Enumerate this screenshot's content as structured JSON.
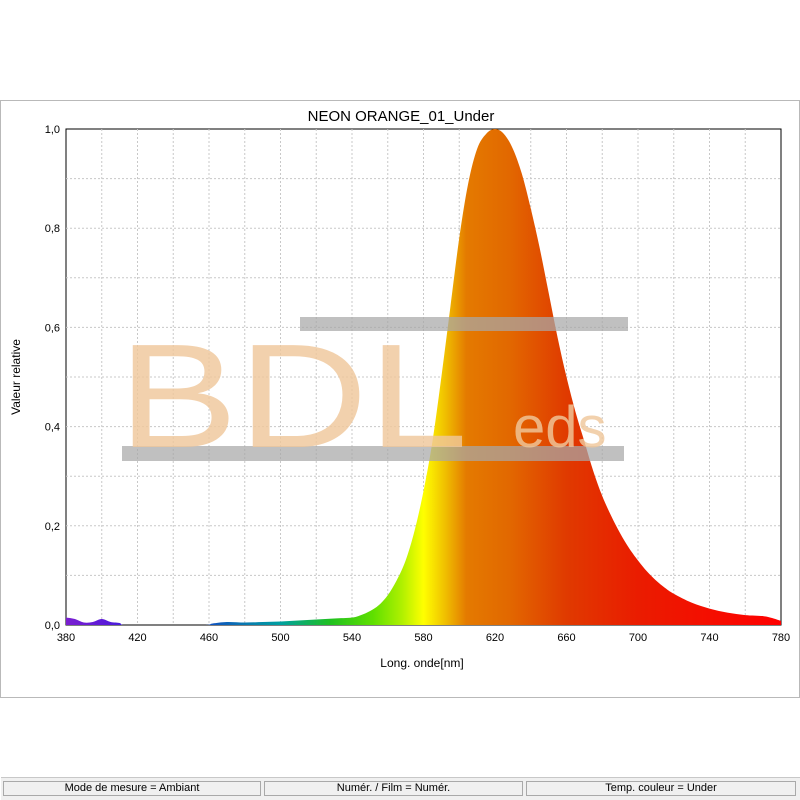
{
  "chart_data": {
    "type": "area",
    "title": "NEON ORANGE_01_Under",
    "xlabel": "Long. onde[nm]",
    "ylabel": "Valeur relative",
    "xlim": [
      380,
      780
    ],
    "ylim": [
      0,
      1
    ],
    "x_ticks": [
      "380",
      "420",
      "460",
      "500",
      "540",
      "580",
      "620",
      "660",
      "700",
      "740",
      "780"
    ],
    "y_ticks": [
      "0,0",
      "0,2",
      "0,4",
      "0,6",
      "0,8",
      "1,0"
    ],
    "grid": true,
    "series": [
      {
        "x": [
          380,
          385,
          390,
          395,
          400,
          405,
          410,
          412,
          420,
          440,
          458,
          462,
          470,
          480,
          490,
          500,
          510,
          520,
          530,
          540,
          545,
          550,
          555,
          560,
          565,
          570,
          575,
          580,
          585,
          590,
          595,
          600,
          605,
          610,
          615,
          620,
          625,
          630,
          635,
          640,
          645,
          650,
          655,
          660,
          665,
          670,
          675,
          680,
          685,
          690,
          695,
          700,
          705,
          710,
          715,
          720,
          730,
          740,
          750,
          760,
          770,
          775,
          780
        ],
        "y": [
          0.015,
          0.012,
          0.005,
          0.006,
          0.012,
          0.006,
          0.004,
          0.0,
          0.0,
          0.0,
          0.0,
          0.003,
          0.006,
          0.005,
          0.006,
          0.007,
          0.009,
          0.011,
          0.013,
          0.015,
          0.02,
          0.028,
          0.04,
          0.06,
          0.09,
          0.13,
          0.19,
          0.27,
          0.37,
          0.5,
          0.64,
          0.78,
          0.89,
          0.96,
          0.99,
          1.0,
          0.99,
          0.96,
          0.91,
          0.84,
          0.76,
          0.67,
          0.58,
          0.5,
          0.43,
          0.37,
          0.31,
          0.26,
          0.22,
          0.185,
          0.155,
          0.13,
          0.108,
          0.09,
          0.075,
          0.063,
          0.045,
          0.033,
          0.025,
          0.02,
          0.018,
          0.014,
          0.008
        ]
      }
    ]
  },
  "watermark": {
    "main": "BDL",
    "sub": "eds"
  },
  "status_bar": {
    "mode": "Mode de mesure = Ambiant",
    "film": "Numér. / Film = Numér.",
    "color_temp": "Temp. couleur = Under"
  }
}
